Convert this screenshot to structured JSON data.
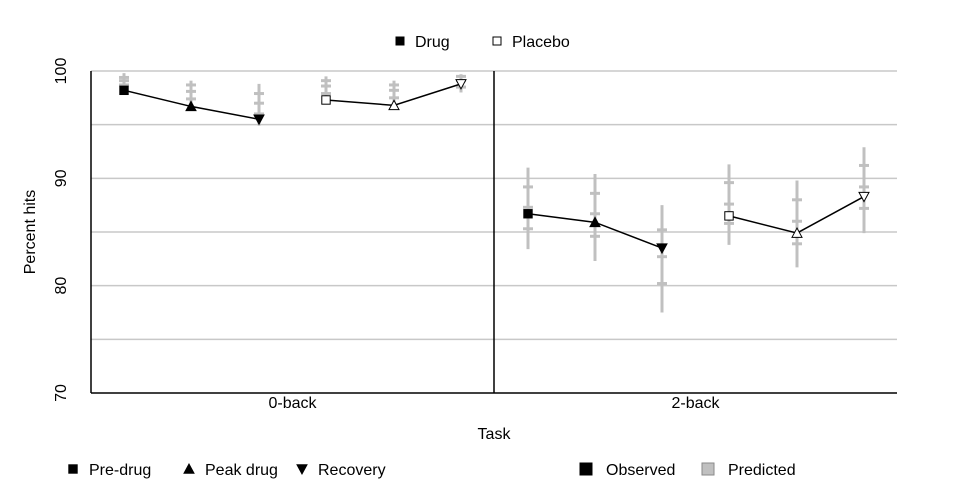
{
  "chart_data": {
    "type": "line",
    "title": "",
    "xlabel": "Task",
    "ylabel": "Percent hits",
    "ylim": [
      70,
      100
    ],
    "yticks": [
      70,
      80,
      90,
      100
    ],
    "grid": true,
    "panels": [
      "0-back",
      "2-back"
    ],
    "conditions": [
      "Drug",
      "Placebo"
    ],
    "timepoints": [
      "Pre-drug",
      "Peak drug",
      "Recovery"
    ],
    "legend_top": [
      {
        "label": "Drug",
        "marker": "square-filled"
      },
      {
        "label": "Placebo",
        "marker": "square-open"
      }
    ],
    "legend_bottom_left": [
      {
        "label": "Pre-drug",
        "marker": "square"
      },
      {
        "label": "Peak drug",
        "marker": "triangle-up"
      },
      {
        "label": "Recovery",
        "marker": "triangle-down"
      }
    ],
    "legend_bottom_right": [
      {
        "label": "Observed",
        "color": "#000000"
      },
      {
        "label": "Predicted",
        "color": "#c0c0c0"
      }
    ],
    "series": [
      {
        "panel": "0-back",
        "condition": "Drug",
        "observed": [
          98.2,
          96.7,
          95.5
        ],
        "predicted": [
          {
            "points": [
              98.7,
              99.1,
              99.4
            ],
            "low": 98.3,
            "high": 99.8
          },
          {
            "points": [
              97.4,
              98.1,
              98.7
            ],
            "low": 96.9,
            "high": 99.1
          },
          {
            "points": [
              96.0,
              97.0,
              97.9
            ],
            "low": 94.9,
            "high": 98.8
          }
        ]
      },
      {
        "panel": "0-back",
        "condition": "Placebo",
        "observed": [
          97.3,
          96.8,
          98.8
        ],
        "predicted": [
          {
            "points": [
              97.9,
              98.6,
              99.1
            ],
            "low": 97.6,
            "high": 99.5
          },
          {
            "points": [
              97.5,
              98.2,
              98.7
            ],
            "low": 97.0,
            "high": 99.1
          },
          {
            "points": [
              98.5,
              99.1,
              99.5
            ],
            "low": 98.0,
            "high": 99.7
          }
        ]
      },
      {
        "panel": "2-back",
        "condition": "Drug",
        "observed": [
          86.7,
          85.9,
          83.5
        ],
        "predicted": [
          {
            "points": [
              85.3,
              87.3,
              89.2
            ],
            "low": 83.4,
            "high": 91.0
          },
          {
            "points": [
              84.6,
              86.7,
              88.6
            ],
            "low": 82.3,
            "high": 90.4
          },
          {
            "points": [
              80.2,
              82.7,
              85.2
            ],
            "low": 77.5,
            "high": 87.5
          }
        ]
      },
      {
        "panel": "2-back",
        "condition": "Placebo",
        "observed": [
          86.5,
          84.9,
          88.3
        ],
        "predicted": [
          {
            "points": [
              85.8,
              87.6,
              89.6
            ],
            "low": 83.8,
            "high": 91.3
          },
          {
            "points": [
              83.9,
              86.0,
              88.0
            ],
            "low": 81.7,
            "high": 89.8
          },
          {
            "points": [
              87.2,
              89.2,
              91.2
            ],
            "low": 84.9,
            "high": 92.9
          }
        ]
      }
    ]
  }
}
